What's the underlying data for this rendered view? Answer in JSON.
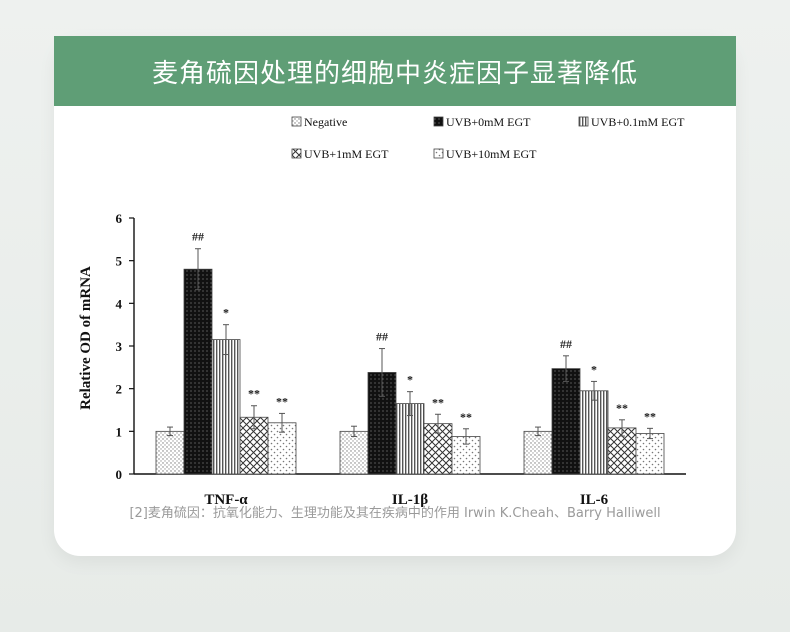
{
  "card": {
    "title": "麦角硫因处理的细胞中炎症因子显著降低",
    "caption": "[2]麦角硫因：抗氧化能力、生理功能及其在疾病中的作用 Irwin K.Cheah、Barry Halliwell"
  },
  "chart_data": {
    "type": "bar",
    "title": "",
    "xlabel": "",
    "ylabel": "Relative OD of mRNA",
    "ylim": [
      0,
      6
    ],
    "yticks": [
      0,
      1,
      2,
      3,
      4,
      5,
      6
    ],
    "categories": [
      "TNF-α",
      "IL-1β",
      "IL-6"
    ],
    "legend_position": "top",
    "series": [
      {
        "name": "Negative",
        "pattern": "dots-light",
        "values": [
          1.0,
          1.0,
          1.0
        ],
        "errors": [
          0.1,
          0.12,
          0.1
        ],
        "marks": [
          "",
          "",
          ""
        ]
      },
      {
        "name": "UVB+0mM EGT",
        "pattern": "dark-dots",
        "values": [
          4.8,
          2.38,
          2.47
        ],
        "errors": [
          0.48,
          0.56,
          0.3
        ],
        "marks": [
          "##",
          "##",
          "##"
        ]
      },
      {
        "name": "UVB+0.1mM EGT",
        "pattern": "vertical-lines",
        "values": [
          3.15,
          1.65,
          1.95
        ],
        "errors": [
          0.35,
          0.28,
          0.22
        ],
        "marks": [
          "*",
          "*",
          "*"
        ]
      },
      {
        "name": "UVB+1mM EGT",
        "pattern": "crosshatch",
        "values": [
          1.33,
          1.18,
          1.08
        ],
        "errors": [
          0.27,
          0.22,
          0.19
        ],
        "marks": [
          "**",
          "**",
          "**"
        ]
      },
      {
        "name": "UVB+10mM EGT",
        "pattern": "dots-sparse",
        "values": [
          1.2,
          0.88,
          0.95
        ],
        "errors": [
          0.22,
          0.18,
          0.12
        ],
        "marks": [
          "**",
          "**",
          "**"
        ]
      }
    ]
  }
}
